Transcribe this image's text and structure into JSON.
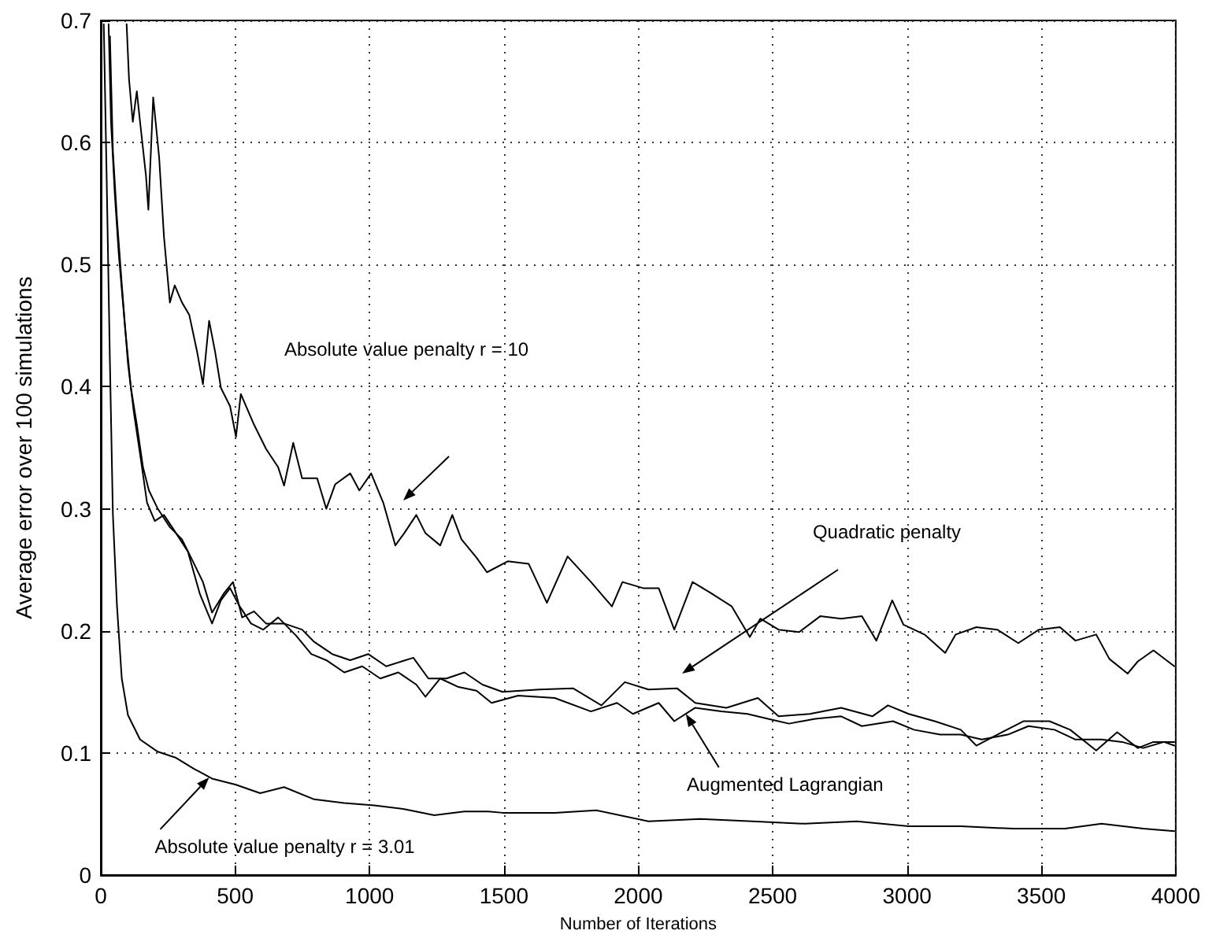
{
  "chart_data": {
    "type": "line",
    "xlabel": "Number of Iterations",
    "ylabel": "Average error over 100 simulations",
    "xlim": [
      0,
      4000
    ],
    "xticks": [
      0,
      500,
      1000,
      1500,
      2000,
      2500,
      3000,
      3500,
      4000
    ],
    "ylim": [
      0,
      0.7
    ],
    "yticks": [
      0,
      0.1,
      0.2,
      0.3,
      0.4,
      0.5,
      0.6,
      0.7
    ],
    "grid": true,
    "marker": "none",
    "line_style": "solid",
    "annotations": [
      "Absolute value penalty r = 10",
      "Quadratic penalty",
      {
        "text": "Augmented Lagrangian",
        "x": 2177,
        "y": 0.132
      },
      {
        "text": "Absolute value penalty r = 3.01",
        "x": 403,
        "y": 0.08
      }
    ],
    "series": [
      {
        "color": "#000000",
        "x": [
          96,
          105,
          119,
          134,
          146,
          168,
          177,
          195,
          217,
          235,
          257,
          275,
          302,
          329,
          358,
          380,
          403,
          425,
          447,
          481,
          503,
          521,
          570,
          615,
          660,
          682,
          716,
          749,
          805,
          839,
          872,
          928,
          962,
          1006,
          1051,
          1096,
          1129,
          1174,
          1208,
          1263,
          1308,
          1342,
          1398,
          1437,
          1514,
          1592,
          1660,
          1737,
          1824,
          1902,
          1941,
          2018,
          2076,
          2134,
          2202,
          2270,
          2348,
          2415,
          2454,
          2522,
          2599,
          2677,
          2755,
          2832,
          2886,
          2945,
          2987,
          3065,
          3142,
          3181,
          3258,
          3336,
          3414,
          3491,
          3569,
          3627,
          3704,
          3753,
          3821,
          3859,
          3917,
          3995
        ],
        "values": [
          0.697,
          0.652,
          0.617,
          0.642,
          0.617,
          0.573,
          0.545,
          0.637,
          0.588,
          0.523,
          0.469,
          0.483,
          0.469,
          0.459,
          0.429,
          0.402,
          0.454,
          0.429,
          0.399,
          0.384,
          0.359,
          0.394,
          0.369,
          0.349,
          0.334,
          0.319,
          0.354,
          0.325,
          0.325,
          0.3,
          0.32,
          0.329,
          0.315,
          0.329,
          0.305,
          0.27,
          0.28,
          0.295,
          0.28,
          0.27,
          0.295,
          0.275,
          0.26,
          0.248,
          0.257,
          0.255,
          0.223,
          0.261,
          0.24,
          0.22,
          0.24,
          0.235,
          0.235,
          0.201,
          0.24,
          0.231,
          0.22,
          0.195,
          0.21,
          0.201,
          0.199,
          0.212,
          0.21,
          0.212,
          0.192,
          0.225,
          0.205,
          0.197,
          0.182,
          0.197,
          0.203,
          0.201,
          0.19,
          0.201,
          0.203,
          0.192,
          0.197,
          0.177,
          0.165,
          0.175,
          0.184,
          0.171
        ]
      },
      {
        "color": "#000000",
        "x": [
          29,
          38,
          52,
          67,
          90,
          112,
          134,
          157,
          179,
          212,
          257,
          302,
          347,
          380,
          414,
          459,
          492,
          526,
          570,
          615,
          682,
          749,
          794,
          861,
          928,
          995,
          1062,
          1163,
          1219,
          1286,
          1353,
          1420,
          1495,
          1631,
          1757,
          1863,
          1950,
          2038,
          2144,
          2212,
          2328,
          2445,
          2522,
          2638,
          2755,
          2871,
          2929,
          3006,
          3103,
          3200,
          3258,
          3336,
          3433,
          3530,
          3607,
          3704,
          3782,
          3859,
          3917,
          3995
        ],
        "values": [
          0.697,
          0.617,
          0.558,
          0.508,
          0.449,
          0.399,
          0.369,
          0.334,
          0.315,
          0.3,
          0.285,
          0.275,
          0.255,
          0.24,
          0.215,
          0.231,
          0.24,
          0.211,
          0.216,
          0.206,
          0.206,
          0.201,
          0.191,
          0.181,
          0.176,
          0.181,
          0.171,
          0.178,
          0.161,
          0.161,
          0.166,
          0.156,
          0.15,
          0.152,
          0.153,
          0.139,
          0.158,
          0.152,
          0.153,
          0.141,
          0.137,
          0.145,
          0.13,
          0.132,
          0.137,
          0.13,
          0.139,
          0.132,
          0.126,
          0.119,
          0.106,
          0.115,
          0.126,
          0.126,
          0.119,
          0.102,
          0.117,
          0.104,
          0.109,
          0.109
        ]
      },
      {
        "color": "#000000",
        "x": [
          34,
          45,
          60,
          78,
          101,
          123,
          150,
          172,
          201,
          235,
          280,
          324,
          369,
          414,
          447,
          481,
          514,
          559,
          604,
          660,
          727,
          783,
          839,
          906,
          973,
          1040,
          1107,
          1174,
          1208,
          1263,
          1331,
          1398,
          1454,
          1553,
          1689,
          1824,
          1921,
          1980,
          2076,
          2134,
          2212,
          2309,
          2406,
          2483,
          2561,
          2658,
          2755,
          2832,
          2948,
          3026,
          3123,
          3200,
          3278,
          3375,
          3452,
          3549,
          3627,
          3724,
          3801,
          3879,
          3956,
          3995
        ],
        "values": [
          0.687,
          0.593,
          0.538,
          0.484,
          0.419,
          0.379,
          0.339,
          0.305,
          0.29,
          0.295,
          0.28,
          0.265,
          0.23,
          0.206,
          0.225,
          0.235,
          0.221,
          0.206,
          0.201,
          0.211,
          0.196,
          0.181,
          0.176,
          0.166,
          0.171,
          0.161,
          0.166,
          0.156,
          0.146,
          0.161,
          0.154,
          0.151,
          0.141,
          0.147,
          0.145,
          0.134,
          0.141,
          0.132,
          0.141,
          0.126,
          0.137,
          0.134,
          0.132,
          0.128,
          0.124,
          0.128,
          0.13,
          0.122,
          0.126,
          0.119,
          0.115,
          0.115,
          0.111,
          0.115,
          0.122,
          0.119,
          0.111,
          0.111,
          0.109,
          0.104,
          0.109,
          0.106
        ]
      },
      {
        "color": "#000000",
        "x": [
          11,
          22,
          34,
          45,
          60,
          78,
          101,
          146,
          212,
          280,
          347,
          414,
          503,
          593,
          682,
          794,
          906,
          1018,
          1129,
          1241,
          1353,
          1442,
          1495,
          1689,
          1844,
          2038,
          2231,
          2425,
          2619,
          2813,
          3006,
          3200,
          3394,
          3588,
          3724,
          3879,
          3995
        ],
        "values": [
          0.697,
          0.568,
          0.419,
          0.295,
          0.221,
          0.161,
          0.131,
          0.111,
          0.101,
          0.096,
          0.087,
          0.079,
          0.074,
          0.067,
          0.072,
          0.062,
          0.059,
          0.057,
          0.054,
          0.049,
          0.052,
          0.052,
          0.051,
          0.051,
          0.053,
          0.044,
          0.046,
          0.044,
          0.042,
          0.044,
          0.04,
          0.04,
          0.038,
          0.038,
          0.042,
          0.038,
          0.036
        ]
      }
    ]
  }
}
